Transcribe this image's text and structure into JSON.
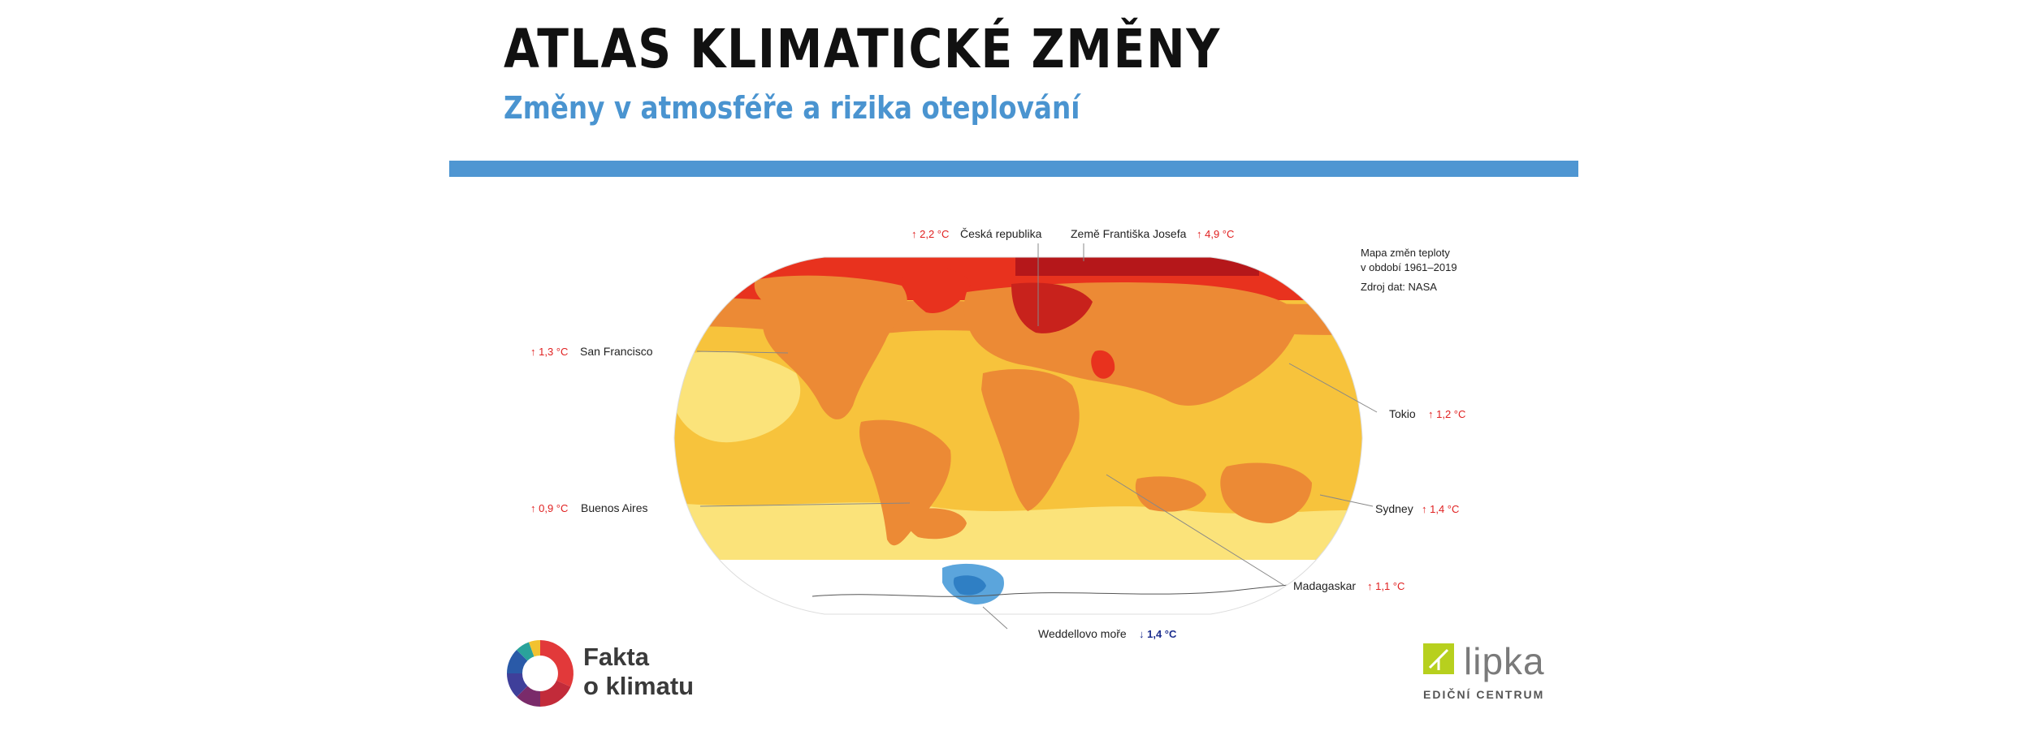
{
  "header": {
    "title": "ATLAS KLIMATICKÉ ZMĚNY",
    "subtitle": "Změny v atmosféře a rizika oteplování"
  },
  "map": {
    "note_line1": "Mapa změn teploty",
    "note_line2": "v období 1961–2019",
    "source": "Zdroj dat: NASA",
    "locations": [
      {
        "name": "Česká republika",
        "change": "↑ 2,2 °C",
        "trend": "warming"
      },
      {
        "name": "Země Františka Josefa",
        "change": "↑ 4,9 °C",
        "trend": "warming"
      },
      {
        "name": "San Francisco",
        "change": "↑ 1,3 °C",
        "trend": "warming"
      },
      {
        "name": "Tokio",
        "change": "↑ 1,2 °C",
        "trend": "warming"
      },
      {
        "name": "Buenos Aires",
        "change": "↑ 0,9 °C",
        "trend": "warming"
      },
      {
        "name": "Sydney",
        "change": "↑ 1,4 °C",
        "trend": "warming"
      },
      {
        "name": "Madagaskar",
        "change": "↑ 1,1 °C",
        "trend": "warming"
      },
      {
        "name": "Weddellovo moře",
        "change": "↓ 1,4 °C",
        "trend": "cooling"
      }
    ],
    "colors": {
      "warming_label": "#e02020",
      "cooling_label": "#1d2f8f",
      "strong_warming": "#c8221c",
      "high_warming": "#e8321e",
      "warming": "#ec8a35",
      "mild_warming": "#f7c33c",
      "slight_warming": "#fbe37a",
      "neutral": "#ffffff",
      "cooling": "#5ba5dc"
    }
  },
  "footer": {
    "fakta_line1": "Fakta",
    "fakta_line2": "o klimatu",
    "lipka_name": "lipka",
    "lipka_tagline": "EDIČNÍ CENTRUM",
    "accent": "#4f96d2"
  }
}
